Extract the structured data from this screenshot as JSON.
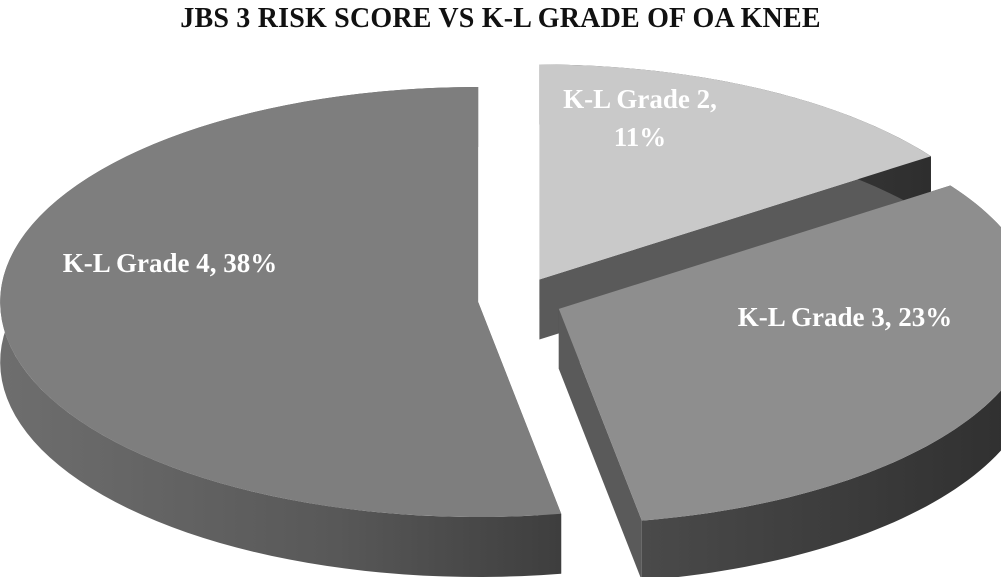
{
  "chart_data": {
    "type": "pie",
    "title": "JBS 3 RISK SCORE VS K-L GRADE OF OA KNEE",
    "slices": [
      {
        "category": "K-L Grade 2",
        "value": 11,
        "label": "K-L Grade 2,",
        "label2": "11%",
        "color": "#c9c9c9"
      },
      {
        "category": "K-L Grade 3",
        "value": 23,
        "label": "K-L Grade 3, 23%",
        "color": "#8e8e8e"
      },
      {
        "category": "K-L Grade 4",
        "value": 38,
        "label": "K-L Grade 4, 38%",
        "color": "#7e7e7e"
      }
    ],
    "exploded": true,
    "three_d": true,
    "legend": "none"
  }
}
